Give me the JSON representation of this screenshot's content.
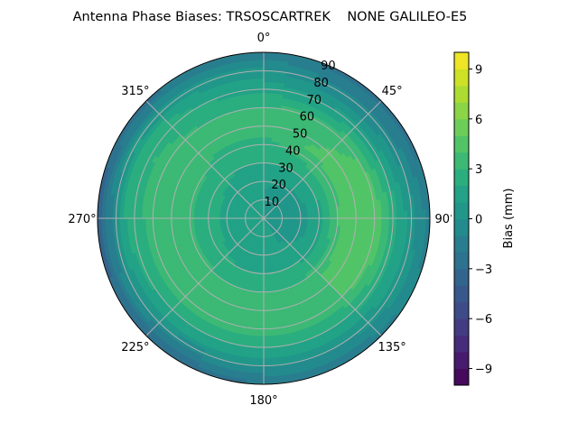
{
  "chart_data": {
    "type": "polar-contour",
    "title": "Antenna Phase Biases: TRSOSCARTREK    NONE GALILEO-E5",
    "angular_ticks": [
      {
        "angle": 0,
        "label": "0°"
      },
      {
        "angle": 45,
        "label": "45°"
      },
      {
        "angle": 90,
        "label": "90°"
      },
      {
        "angle": 135,
        "label": "135°"
      },
      {
        "angle": 180,
        "label": "180°"
      },
      {
        "angle": 225,
        "label": "225°"
      },
      {
        "angle": 270,
        "label": "270°"
      },
      {
        "angle": 315,
        "label": "315°"
      }
    ],
    "radial_ticks": [
      "10",
      "20",
      "30",
      "40",
      "50",
      "60",
      "70",
      "80",
      "90"
    ],
    "radial_range": [
      0,
      90
    ],
    "grid": true,
    "colorbar": {
      "label": "Bias (mm)",
      "range": [
        -10,
        10
      ],
      "levels_step": 1,
      "ticks": [
        -9,
        -6,
        -3,
        0,
        3,
        6,
        9
      ],
      "tick_labels": [
        "−9",
        "−6",
        "−3",
        "0",
        "3",
        "6",
        "9"
      ],
      "colormap": "viridis",
      "placement": "right"
    },
    "grid_azimuth_deg": [
      0,
      30,
      60,
      90,
      120,
      150,
      180,
      210,
      240,
      270,
      300,
      330
    ],
    "grid_zenith_deg": [
      0,
      15,
      30,
      45,
      60,
      75,
      90
    ],
    "values_mm": [
      [
        1,
        1,
        1,
        1,
        1,
        1,
        1,
        1,
        1,
        1,
        1,
        1
      ],
      [
        1,
        0.5,
        0,
        0,
        0.5,
        1,
        1,
        1,
        1,
        1,
        1,
        1
      ],
      [
        2,
        2,
        2,
        1.5,
        1.5,
        2,
        2,
        2,
        2.5,
        2.5,
        2.5,
        2
      ],
      [
        3,
        4,
        4.5,
        5,
        4.5,
        3.5,
        3.5,
        3.5,
        3.5,
        3.5,
        3.5,
        3
      ],
      [
        3,
        3.5,
        4,
        5,
        4.5,
        3.5,
        3.5,
        3.5,
        3.5,
        3.5,
        3.5,
        3
      ],
      [
        1,
        0,
        0.5,
        1.5,
        1.5,
        1,
        1,
        1,
        1.5,
        2,
        2.5,
        1.5
      ],
      [
        -1.5,
        -2.5,
        -2.5,
        -1.5,
        -1,
        -2,
        -2,
        -3,
        -3,
        -4,
        -3,
        -2
      ]
    ]
  }
}
